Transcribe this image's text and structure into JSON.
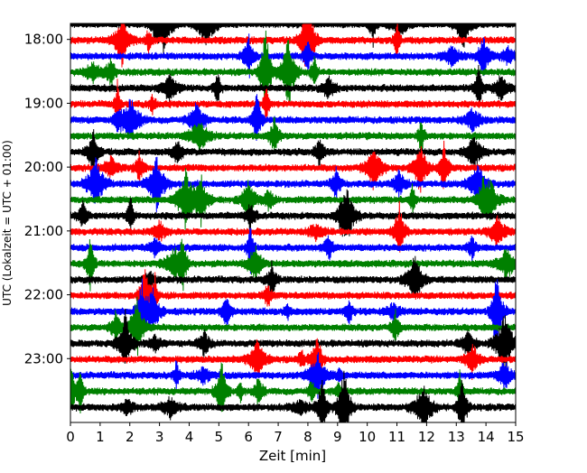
{
  "chart_data": {
    "type": "line",
    "title": "",
    "xlabel": "Zeit  [min]",
    "ylabel": "UTC (Lokalzeit = UTC + 01:00)",
    "xlim": [
      0,
      15
    ],
    "xticks": [
      0,
      1,
      2,
      3,
      4,
      5,
      6,
      7,
      8,
      9,
      10,
      11,
      12,
      13,
      14,
      15
    ],
    "ylim_time": [
      "17:45",
      "24:00"
    ],
    "yticks": [
      "18:00",
      "19:00",
      "20:00",
      "21:00",
      "22:00",
      "23:00"
    ],
    "y_inverted": true,
    "trace_interval_minutes": 15,
    "trace_color_cycle": [
      "#000000",
      "#ff0000",
      "#0000ff",
      "#008000"
    ],
    "traces_start": "17:45",
    "traces_end": "23:45",
    "traces_count": 25,
    "grid": false,
    "legend": "none",
    "series": [
      {
        "start": "17:45",
        "color": "#000000"
      },
      {
        "start": "18:00",
        "color": "#ff0000"
      },
      {
        "start": "18:15",
        "color": "#0000ff"
      },
      {
        "start": "18:30",
        "color": "#008000"
      },
      {
        "start": "18:45",
        "color": "#000000"
      },
      {
        "start": "19:00",
        "color": "#ff0000"
      },
      {
        "start": "19:15",
        "color": "#0000ff"
      },
      {
        "start": "19:30",
        "color": "#008000"
      },
      {
        "start": "19:45",
        "color": "#000000"
      },
      {
        "start": "20:00",
        "color": "#ff0000"
      },
      {
        "start": "20:15",
        "color": "#0000ff"
      },
      {
        "start": "20:30",
        "color": "#008000"
      },
      {
        "start": "20:45",
        "color": "#000000"
      },
      {
        "start": "21:00",
        "color": "#ff0000"
      },
      {
        "start": "21:15",
        "color": "#0000ff"
      },
      {
        "start": "21:30",
        "color": "#008000"
      },
      {
        "start": "21:45",
        "color": "#000000"
      },
      {
        "start": "22:00",
        "color": "#ff0000"
      },
      {
        "start": "22:15",
        "color": "#0000ff"
      },
      {
        "start": "22:30",
        "color": "#008000"
      },
      {
        "start": "22:45",
        "color": "#000000"
      },
      {
        "start": "23:00",
        "color": "#ff0000"
      },
      {
        "start": "23:15",
        "color": "#0000ff"
      },
      {
        "start": "23:30",
        "color": "#008000"
      },
      {
        "start": "23:45",
        "color": "#000000"
      }
    ]
  }
}
